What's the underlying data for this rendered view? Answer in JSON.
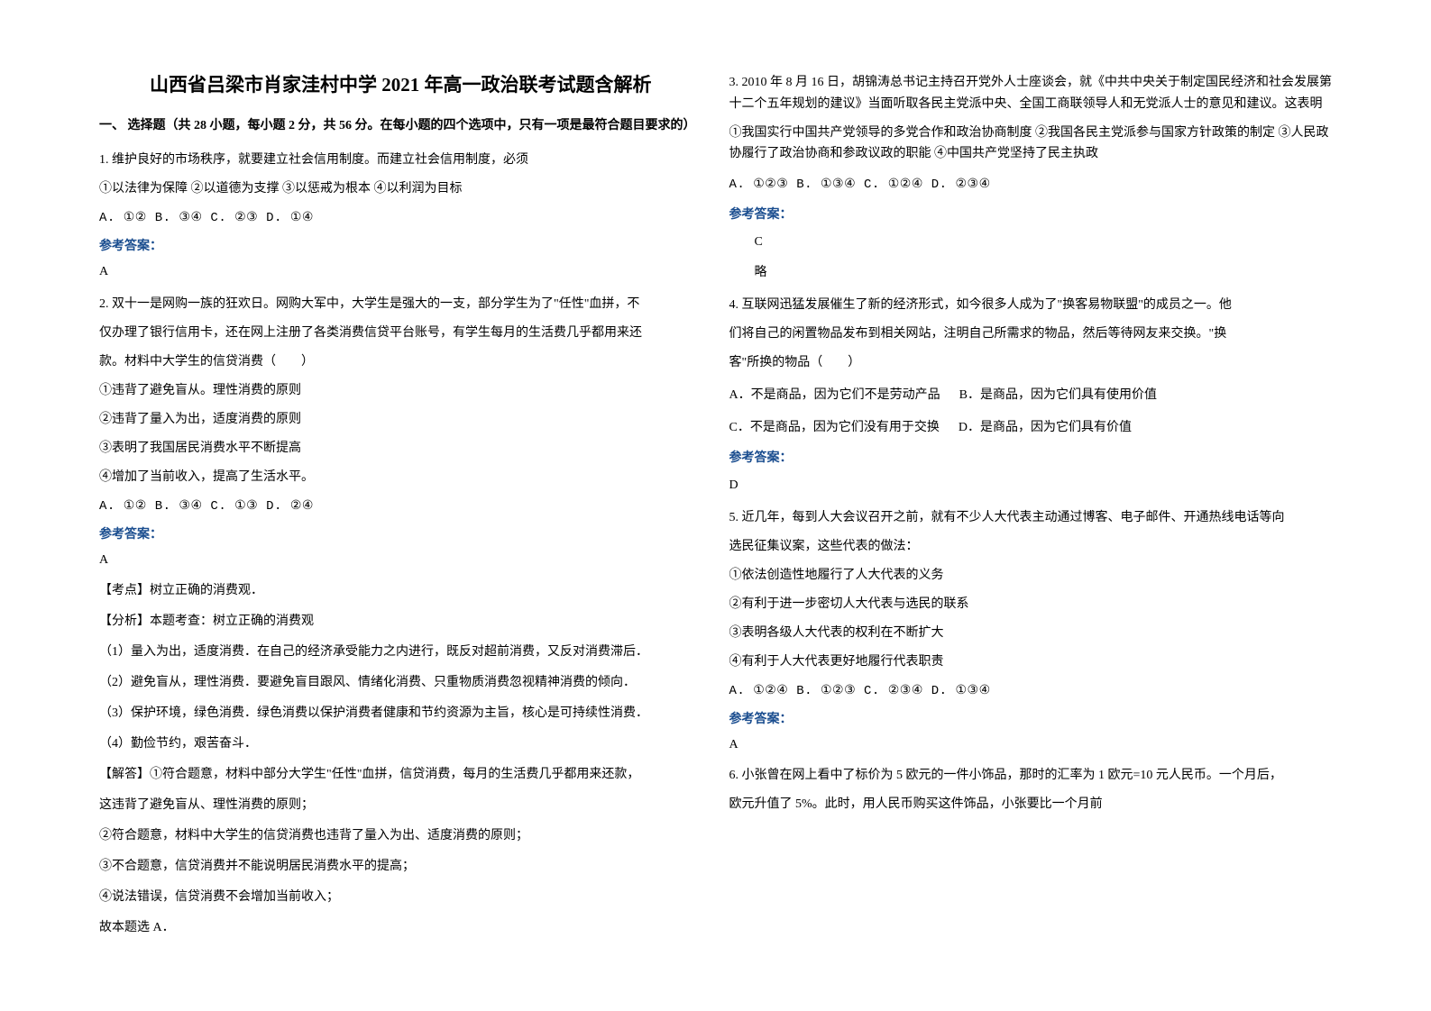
{
  "title": "山西省吕梁市肖家洼村中学 2021 年高一政治联考试题含解析",
  "section1_heading": "一、 选择题（共 28 小题，每小题 2 分，共 56 分。在每小题的四个选项中，只有一项是最符合题目要求的）",
  "q1": {
    "stem": "1. 维护良好的市场秩序，就要建立社会信用制度。而建立社会信用制度，必须",
    "line1": "①以法律为保障       ②以道德为支撑       ③以惩戒为根本       ④以利润为目标",
    "options": "A. ①②    B. ③④   C. ②③   D. ①④",
    "answer_label": "参考答案：",
    "answer": "A"
  },
  "q2": {
    "stem1": "2. 双十一是网购一族的狂欢日。网购大军中，大学生是强大的一支，部分学生为了\"任性\"血拼，不",
    "stem2": "仅办理了银行信用卡，还在网上注册了各类消费信贷平台账号，有学生每月的生活费几乎都用来还",
    "stem3": "款。材料中大学生的信贷消费（　　）",
    "opt1": "①违背了避免盲从。理性消费的原则",
    "opt2": "②违背了量入为出，适度消费的原则",
    "opt3": "③表明了我国居民消费水平不断提高",
    "opt4": "④增加了当前收入，提高了生活水平。",
    "options": "A. ①②     B. ③④      C. ①③      D. ②④",
    "answer_label": "参考答案：",
    "answer": "A",
    "explain1": "【考点】树立正确的消费观．",
    "explain2": "【分析】本题考查：树立正确的消费观",
    "explain3": "（1）量入为出，适度消费．在自己的经济承受能力之内进行，既反对超前消费，又反对消费滞后．",
    "explain4": "（2）避免盲从，理性消费．要避免盲目跟风、情绪化消费、只重物质消费忽视精神消费的倾向．",
    "explain5": "（3）保护环境，绿色消费．绿色消费以保护消费者健康和节约资源为主旨，核心是可持续性消费．",
    "explain6": "（4）勤俭节约，艰苦奋斗．",
    "explain7": "【解答】①符合题意，材料中部分大学生\"任性\"血拼，信贷消费，每月的生活费几乎都用来还款，",
    "explain8": "这违背了避免盲从、理性消费的原则；",
    "explain9": "②符合题意，材料中大学生的信贷消费也违背了量入为出、适度消费的原则；",
    "explain10": "③不合题意，信贷消费并不能说明居民消费水平的提高；",
    "explain11": "④说法错误，信贷消费不会增加当前收入；",
    "explain12": "故本题选 A．"
  },
  "q3": {
    "stem1": "3. 2010 年 8 月 16 日，胡锦涛总书记主持召开党外人士座谈会，就《中共中央关于制定国民经济和社会发展第十二个五年规划的建议》当面听取各民主党派中央、全国工商联领导人和无党派人士的意见和建议。这表明",
    "stem2": "①我国实行中国共产党领导的多党合作和政治协商制度           ②我国各民主党派参与国家方针政策的制定      ③人民政协履行了政治协商和参政议政的职能        ④中国共产党坚持了民主执政",
    "options": "A.  ①②③                  B.  ①③④                  C.  ①②④                  D.  ②③④",
    "answer_label": "参考答案：",
    "answer": "C",
    "note": "略"
  },
  "q4": {
    "stem1": "4. 互联网迅猛发展催生了新的经济形式，如今很多人成为了\"换客易物联盟\"的成员之一。他",
    "stem2": "们将自己的闲置物品发布到相关网站，注明自己所需求的物品，然后等待网友来交换。\"换",
    "stem3": "客\"所换的物品（　　）",
    "optA": "A．不是商品，因为它们不是劳动产品",
    "optB": "B．是商品，因为它们具有使用价值",
    "optC": "C．不是商品，因为它们没有用于交换",
    "optD": "D．是商品，因为它们具有价值",
    "answer_label": "参考答案：",
    "answer": "D"
  },
  "q5": {
    "stem1": "5. 近几年，每到人大会议召开之前，就有不少人大代表主动通过博客、电子邮件、开通热线电话等向",
    "stem2": "选民征集议案，这些代表的做法：",
    "opt1": "①依法创造性地履行了人大代表的义务",
    "opt2": "②有利于进一步密切人大代表与选民的联系",
    "opt3": "③表明各级人大代表的权利在不断扩大",
    "opt4": "④有利于人大代表更好地履行代表职责",
    "options": "A. ①②④       B. ①②③     C. ②③④    D. ①③④",
    "answer_label": "参考答案：",
    "answer": "A"
  },
  "q6": {
    "stem1": "6. 小张曾在网上看中了标价为 5 欧元的一件小饰品，那时的汇率为 1 欧元=10 元人民币。一个月后，",
    "stem2": "欧元升值了 5%。此时，用人民币购买这件饰品，小张要比一个月前"
  }
}
